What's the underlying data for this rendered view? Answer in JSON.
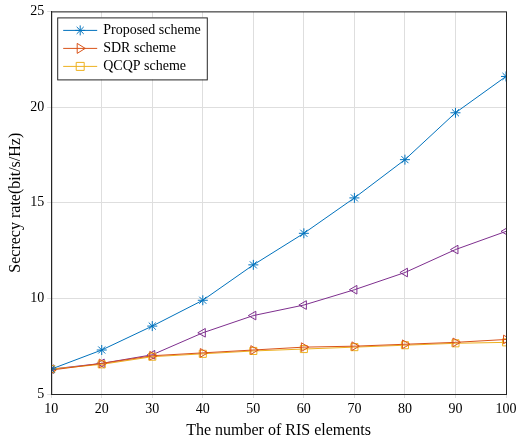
{
  "chart_data": {
    "type": "line",
    "x_label": "The number of RIS elements",
    "y_label": "Secrecy rate(bit/s/Hz)",
    "x": [
      10,
      20,
      30,
      40,
      50,
      60,
      70,
      80,
      90,
      100
    ],
    "series": [
      {
        "name": "Proposed scheme",
        "color": "#0072bd",
        "marker": "asterisk",
        "values": [
          6.3,
          7.3,
          8.55,
          9.9,
          11.75,
          13.4,
          15.25,
          17.25,
          19.7,
          21.6
        ]
      },
      {
        "name": "SDR scheme",
        "color": "#d95319",
        "marker": "triangle-right",
        "values": [
          6.25,
          6.6,
          7.0,
          7.15,
          7.3,
          7.45,
          7.5,
          7.6,
          7.7,
          7.85
        ]
      },
      {
        "name": "QCQP scheme",
        "color": "#edb120",
        "marker": "square",
        "values": [
          6.3,
          6.55,
          6.95,
          7.1,
          7.25,
          7.35,
          7.45,
          7.55,
          7.65,
          7.7
        ]
      },
      {
        "name": null,
        "color": "#7e2f8e",
        "marker": "triangle-left",
        "values": [
          6.3,
          6.6,
          7.05,
          8.2,
          9.1,
          9.65,
          10.45,
          11.35,
          12.55,
          13.5
        ]
      }
    ],
    "xlim": [
      10,
      100
    ],
    "xticks": [
      10,
      20,
      30,
      40,
      50,
      60,
      70,
      80,
      90,
      100
    ],
    "ylim": [
      5,
      25
    ],
    "yticks": [
      5,
      10,
      15,
      20,
      25
    ],
    "grid": true,
    "legend": "upper left"
  }
}
